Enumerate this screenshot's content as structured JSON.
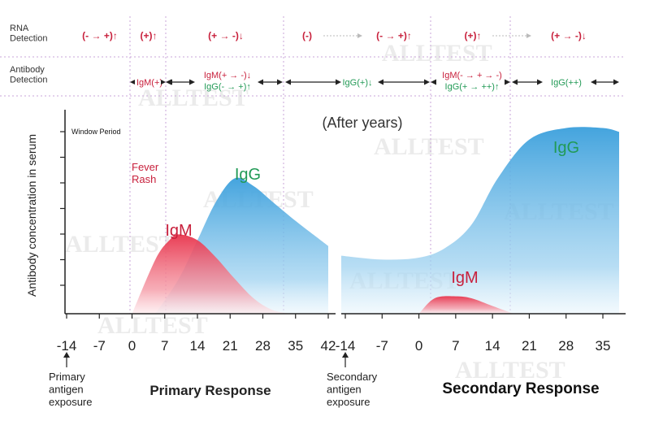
{
  "colors": {
    "igm": "#e83b4f",
    "igg": "#45a5dc",
    "igm_text": "#c8203c",
    "igg_text": "#229a56",
    "rna_text": "#c8203c",
    "guide": "#c9a6d8",
    "watermark": "#d8d8d8"
  },
  "watermark": "ALLTEST",
  "rna_header": "RNA\nDetection",
  "antibody_header": "Antibody\nDetection",
  "rna_cells": [
    "(- → +)↑",
    "(+)↑",
    "(+ → -)↓",
    "(-)",
    "(- → +)↑",
    "(+)↑",
    "(+ → -)↓"
  ],
  "antibody_cells": [
    "IgM(+)",
    "IgM(+ → -)↓",
    "IgG(- → +)↑",
    "IgG(+)↓",
    "IgM(- → + → -)",
    "IgG(+ → ++)↑",
    "IgG(++)"
  ],
  "chart_data": [
    {
      "type": "area",
      "title": "Primary Response",
      "ylabel": "Antibody concentration in serum",
      "x_ticks": [
        -14,
        -7,
        0,
        7,
        14,
        21,
        28,
        35,
        42
      ],
      "xlim": [
        -14,
        42
      ],
      "annotations": [
        "Window Period",
        "Fever\nRash",
        "Primary antigen exposure"
      ],
      "series": [
        {
          "name": "IgM",
          "x": [
            0,
            5,
            8,
            10,
            14,
            18,
            22,
            26,
            30,
            34
          ],
          "values": [
            0,
            0.28,
            0.38,
            0.41,
            0.38,
            0.29,
            0.18,
            0.08,
            0.02,
            0
          ]
        },
        {
          "name": "IgG",
          "x": [
            5,
            10,
            14,
            18,
            22,
            26,
            30,
            35,
            42
          ],
          "values": [
            0,
            0.18,
            0.38,
            0.58,
            0.7,
            0.66,
            0.58,
            0.48,
            0.35
          ]
        }
      ]
    },
    {
      "type": "area",
      "title": "Secondary Response",
      "x_ticks": [
        -14,
        -7,
        0,
        7,
        14,
        21,
        28,
        35
      ],
      "xlim": [
        -14,
        40
      ],
      "annotations": [
        "(After years)",
        "Secondary antigen exposure"
      ],
      "series": [
        {
          "name": "IgM",
          "x": [
            0,
            3,
            7,
            10,
            14,
            18
          ],
          "values": [
            0,
            0.08,
            0.09,
            0.08,
            0.04,
            0
          ]
        },
        {
          "name": "IgG",
          "x": [
            -14,
            -7,
            0,
            5,
            10,
            15,
            21,
            28,
            35,
            40
          ],
          "values": [
            0.3,
            0.28,
            0.29,
            0.34,
            0.46,
            0.7,
            0.9,
            0.96,
            0.96,
            0.94
          ]
        }
      ]
    }
  ]
}
